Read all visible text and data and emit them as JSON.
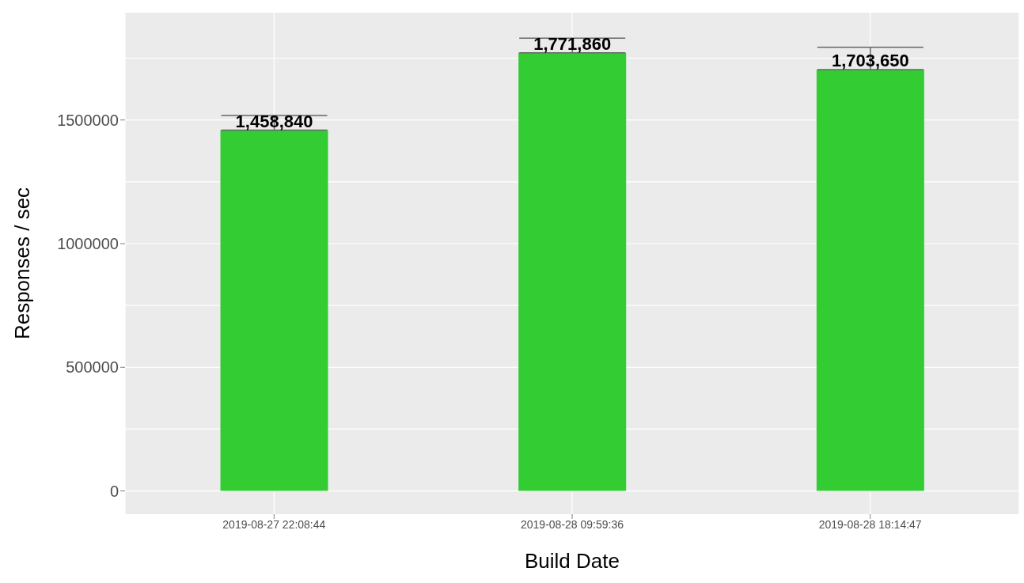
{
  "chart_data": {
    "type": "bar",
    "xlabel": "Build Date",
    "ylabel": "Responses / sec",
    "categories": [
      "2019-08-27 22:08:44",
      "2019-08-28 09:59:36",
      "2019-08-28 18:14:47"
    ],
    "values": [
      1458840,
      1771860,
      1703650
    ],
    "errors": [
      [
        1458840,
        1518000
      ],
      [
        1771860,
        1831000
      ],
      [
        1703650,
        1794000
      ]
    ],
    "value_labels": [
      "1,458,840",
      "1,771,860",
      "1,703,650"
    ],
    "color": "#33cc33",
    "ylim": [
      -94000,
      1934000
    ],
    "yticks": [
      0,
      500000,
      1000000,
      1500000
    ],
    "grid": true
  }
}
